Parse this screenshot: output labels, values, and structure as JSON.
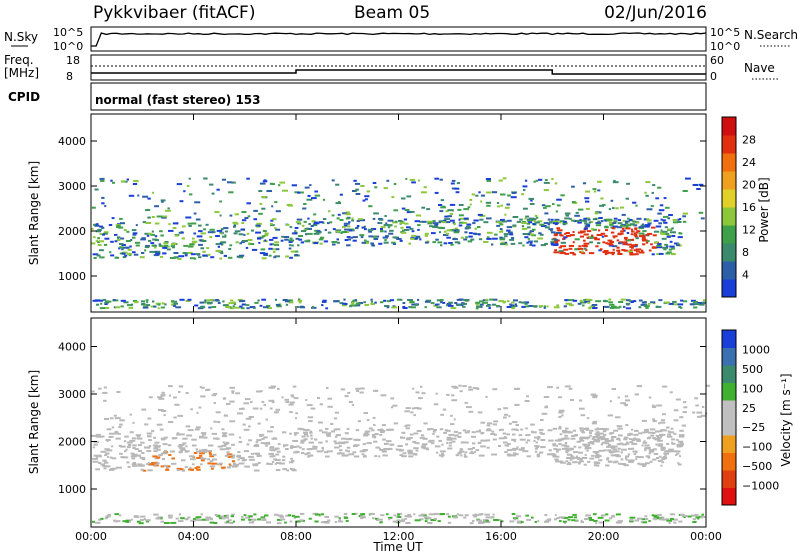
{
  "header": {
    "title": "Pykkvibaer (fitACF)",
    "beam": "Beam 05",
    "date": "02/Jun/2016"
  },
  "noise_panel": {
    "left_label": "N.Sky",
    "right_label": "N.Search",
    "left_ticks": [
      "10^5",
      "10^0"
    ],
    "right_ticks": [
      "10^5",
      "10^0"
    ]
  },
  "freq_panel": {
    "left_label_line1": "Freq.",
    "left_label_line2": "[MHz]",
    "right_label": "Nave",
    "left_ticks": [
      "18",
      "8"
    ],
    "right_ticks": [
      "60",
      "0"
    ]
  },
  "cpid": {
    "label": "CPID",
    "value": "normal (fast stereo) 153"
  },
  "colors": {
    "power_scale": [
      "#1a3fd9",
      "#2d5ea8",
      "#3b8a6e",
      "#3fa04a",
      "#8cc83a",
      "#e0d028",
      "#f0a020",
      "#f07010",
      "#e03010",
      "#d01010"
    ],
    "velocity_scale": [
      "#1a3fd9",
      "#3a6fb0",
      "#3b8a6e",
      "#40b030",
      "#c0c0c0",
      "#c0c0c0",
      "#f0a020",
      "#f07010",
      "#e04010",
      "#e01010"
    ],
    "ground_scatter": "#b8b8b8"
  },
  "chart_data": [
    {
      "type": "heatmap",
      "name": "power",
      "xlabel": "",
      "ylabel": "Slant Range [km]",
      "xlim": [
        "00:00",
        "00:00"
      ],
      "ylim": [
        200,
        4600
      ],
      "y_ticks": [
        1000,
        2000,
        3000,
        4000
      ],
      "colorbar": {
        "label": "Power [dB]",
        "ticks": [
          4,
          8,
          12,
          16,
          20,
          24,
          28
        ],
        "range": [
          0,
          30
        ]
      }
    },
    {
      "type": "heatmap",
      "name": "velocity",
      "xlabel": "Time UT",
      "ylabel": "Slant Range [km]",
      "x_ticks": [
        "00:00",
        "04:00",
        "08:00",
        "12:00",
        "16:00",
        "20:00",
        "00:00"
      ],
      "ylim": [
        200,
        4600
      ],
      "y_ticks": [
        1000,
        2000,
        3000,
        4000
      ],
      "colorbar": {
        "label": "Velocity [m s⁻¹]",
        "ticks": [
          "1000",
          "500",
          "100",
          "25",
          "−25",
          "−100",
          "−500",
          "−1000"
        ]
      }
    }
  ]
}
